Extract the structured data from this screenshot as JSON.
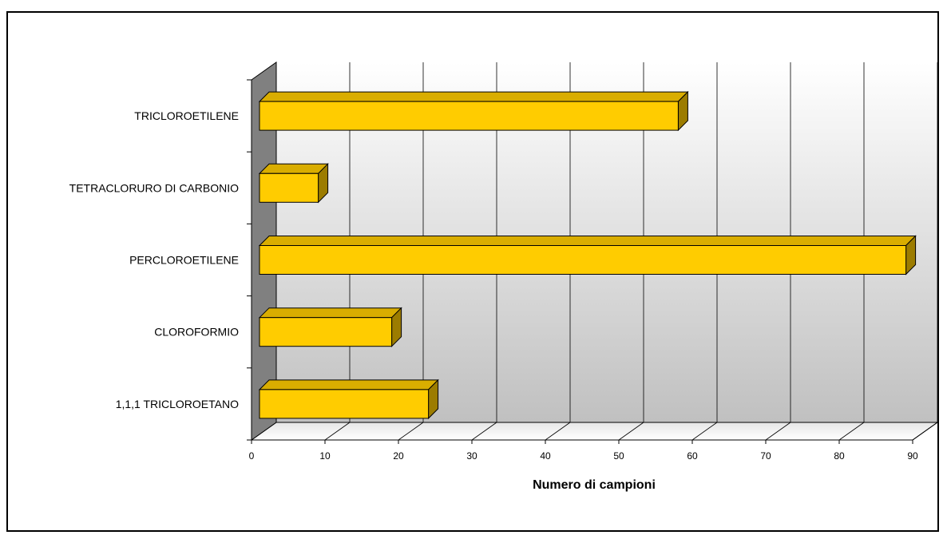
{
  "chart_data": {
    "type": "bar",
    "orientation": "horizontal",
    "style": "3d",
    "categories": [
      "1,1,1 TRICLOROETANO",
      "CLOROFORMIO",
      "PERCLOROETILENE",
      "TETRACLORURO DI CARBONIO",
      "TRICLOROETILENE"
    ],
    "values": [
      23,
      18,
      88,
      8,
      57
    ],
    "title": "",
    "xlabel": "Numero di campioni",
    "ylabel": "",
    "xlim": [
      0,
      90
    ],
    "xticks": [
      "0",
      "10",
      "20",
      "30",
      "40",
      "50",
      "60",
      "70",
      "80",
      "90"
    ],
    "grid": "vertical",
    "legend": "none",
    "colors": {
      "bar_front": "#FFCC00",
      "bar_top": "#D9AD00",
      "bar_side": "#9C7C00",
      "left_wall": "#808080",
      "back_wall_top": "#FFFFFF",
      "back_wall_bottom": "#C0C0C0"
    }
  }
}
